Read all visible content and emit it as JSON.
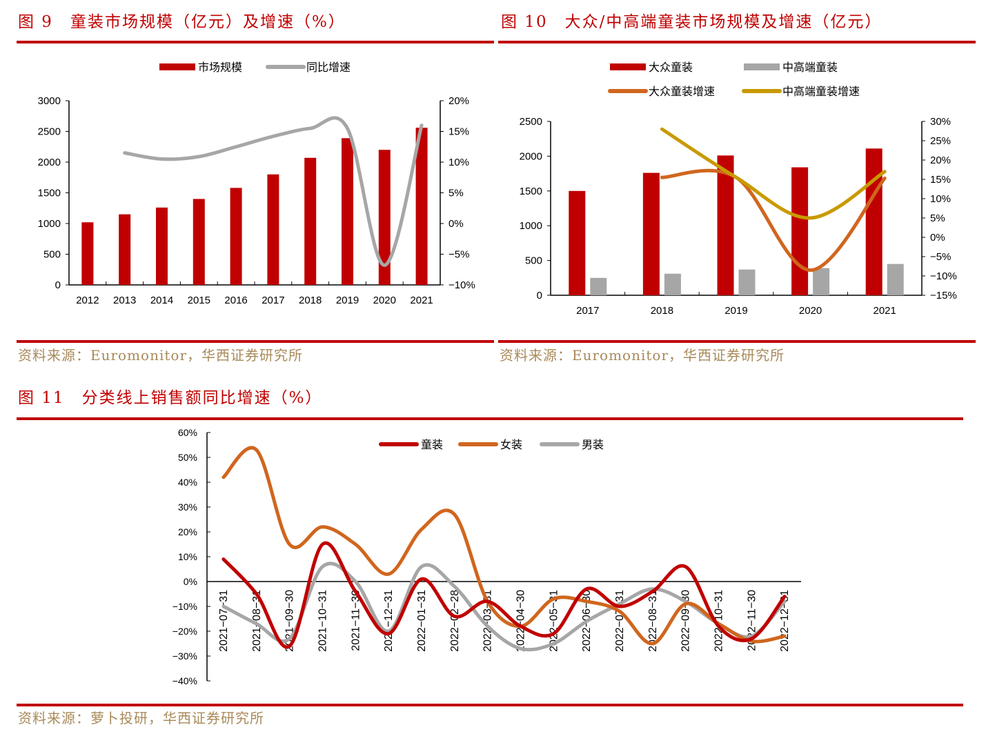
{
  "figures": [
    {
      "title": "图 9　童装市场规模（亿元）及增速（%）",
      "source": "资料来源：Euromonitor，华西证券研究所"
    },
    {
      "title": "图 10　大众/中高端童装市场规模及增速（亿元）",
      "source": "资料来源：Euromonitor，华西证券研究所"
    },
    {
      "title": "图 11　分类线上销售额同比增速（%）",
      "source": "资料来源：萝卜投研，华西证券研究所"
    }
  ],
  "colors": {
    "accent_red": "#c00000",
    "source_tan": "#a88a5a",
    "gray": "#a6a6a6",
    "orange": "#d0661e",
    "gold": "#c89a00"
  },
  "chart_data": [
    {
      "type": "bar+line",
      "title": "童装市场规模（亿元）及增速（%）",
      "categories": [
        "2012",
        "2013",
        "2014",
        "2015",
        "2016",
        "2017",
        "2018",
        "2019",
        "2020",
        "2021"
      ],
      "series": [
        {
          "name": "市场规模",
          "type": "bar",
          "axis": "left",
          "color": "#c00000",
          "values": [
            1020,
            1150,
            1260,
            1400,
            1580,
            1800,
            2070,
            2390,
            2200,
            2560
          ]
        },
        {
          "name": "同比增速",
          "type": "line",
          "axis": "right",
          "color": "#a6a6a6",
          "values": [
            null,
            11.5,
            10.5,
            10.9,
            12.5,
            14.2,
            15.5,
            15.5,
            -6.8,
            16.0
          ]
        }
      ],
      "yleft": {
        "min": 0,
        "max": 3000,
        "ticks": [
          "0",
          "500",
          "1000",
          "1500",
          "2000",
          "2500",
          "3000"
        ]
      },
      "yright": {
        "min": -10,
        "max": 20,
        "ticks": [
          "-10%",
          "-5%",
          "0%",
          "5%",
          "10%",
          "15%",
          "20%"
        ]
      },
      "legend_position": "top"
    },
    {
      "type": "bar+line",
      "title": "大众/中高端童装市场规模及增速（亿元）",
      "categories": [
        "2017",
        "2018",
        "2019",
        "2020",
        "2021"
      ],
      "series": [
        {
          "name": "大众童装",
          "type": "bar",
          "axis": "left",
          "color": "#c00000",
          "values": [
            1500,
            1760,
            2010,
            1840,
            2110
          ]
        },
        {
          "name": "中高端童装",
          "type": "bar",
          "axis": "left",
          "color": "#a6a6a6",
          "values": [
            250,
            310,
            370,
            390,
            450
          ]
        },
        {
          "name": "大众童装增速",
          "type": "line",
          "axis": "right",
          "color": "#d0661e",
          "values": [
            null,
            15.5,
            15.5,
            -8.5,
            15.3
          ]
        },
        {
          "name": "中高端童装增速",
          "type": "line",
          "axis": "right",
          "color": "#c89a00",
          "values": [
            null,
            28.0,
            15.5,
            5.0,
            17.0
          ]
        }
      ],
      "yleft": {
        "min": 0,
        "max": 2500,
        "ticks": [
          "0",
          "500",
          "1000",
          "1500",
          "2000",
          "2500"
        ]
      },
      "yright": {
        "min": -15,
        "max": 30,
        "ticks": [
          "-15%",
          "-10%",
          "-5%",
          "0%",
          "5%",
          "10%",
          "15%",
          "20%",
          "25%",
          "30%"
        ]
      },
      "legend_position": "top"
    },
    {
      "type": "line",
      "title": "分类线上销售额同比增速（%）",
      "categories": [
        "2021-07-31",
        "2021-08-31",
        "2021-09-30",
        "2021-10-31",
        "2021-11-30",
        "2021-12-31",
        "2022-01-31",
        "2022-02-28",
        "2022-03-31",
        "2022-04-30",
        "2022-05-31",
        "2022-06-30",
        "2022-07-31",
        "2022-08-31",
        "2022-09-30",
        "2022-10-31",
        "2022-11-30",
        "2022-12-31"
      ],
      "series": [
        {
          "name": "童装",
          "color": "#c00000",
          "values": [
            9,
            -5,
            -26,
            15,
            -4,
            -21,
            1,
            -14,
            -8,
            -18,
            -21,
            -3,
            -10,
            -4,
            6,
            -18,
            -23,
            -6
          ]
        },
        {
          "name": "女装",
          "color": "#d0661e",
          "values": [
            42,
            53,
            15,
            22,
            15,
            3,
            21,
            27,
            -8,
            -18,
            -7,
            -8,
            -12,
            -25,
            -9,
            -17,
            -24,
            -22
          ]
        },
        {
          "name": "男装",
          "color": "#a6a6a6",
          "values": [
            -10,
            -17,
            -23,
            6,
            0,
            -20,
            6,
            -2,
            -18,
            -27,
            -25,
            -16,
            -9,
            -3,
            -8,
            -17,
            -22,
            -8
          ]
        }
      ],
      "ylabel": "",
      "yaxis": {
        "min": -40,
        "max": 60,
        "ticks": [
          "-40%",
          "-30%",
          "-20%",
          "-10%",
          "0%",
          "10%",
          "20%",
          "30%",
          "40%",
          "50%",
          "60%"
        ]
      },
      "legend_position": "top-right",
      "grid": false
    }
  ]
}
